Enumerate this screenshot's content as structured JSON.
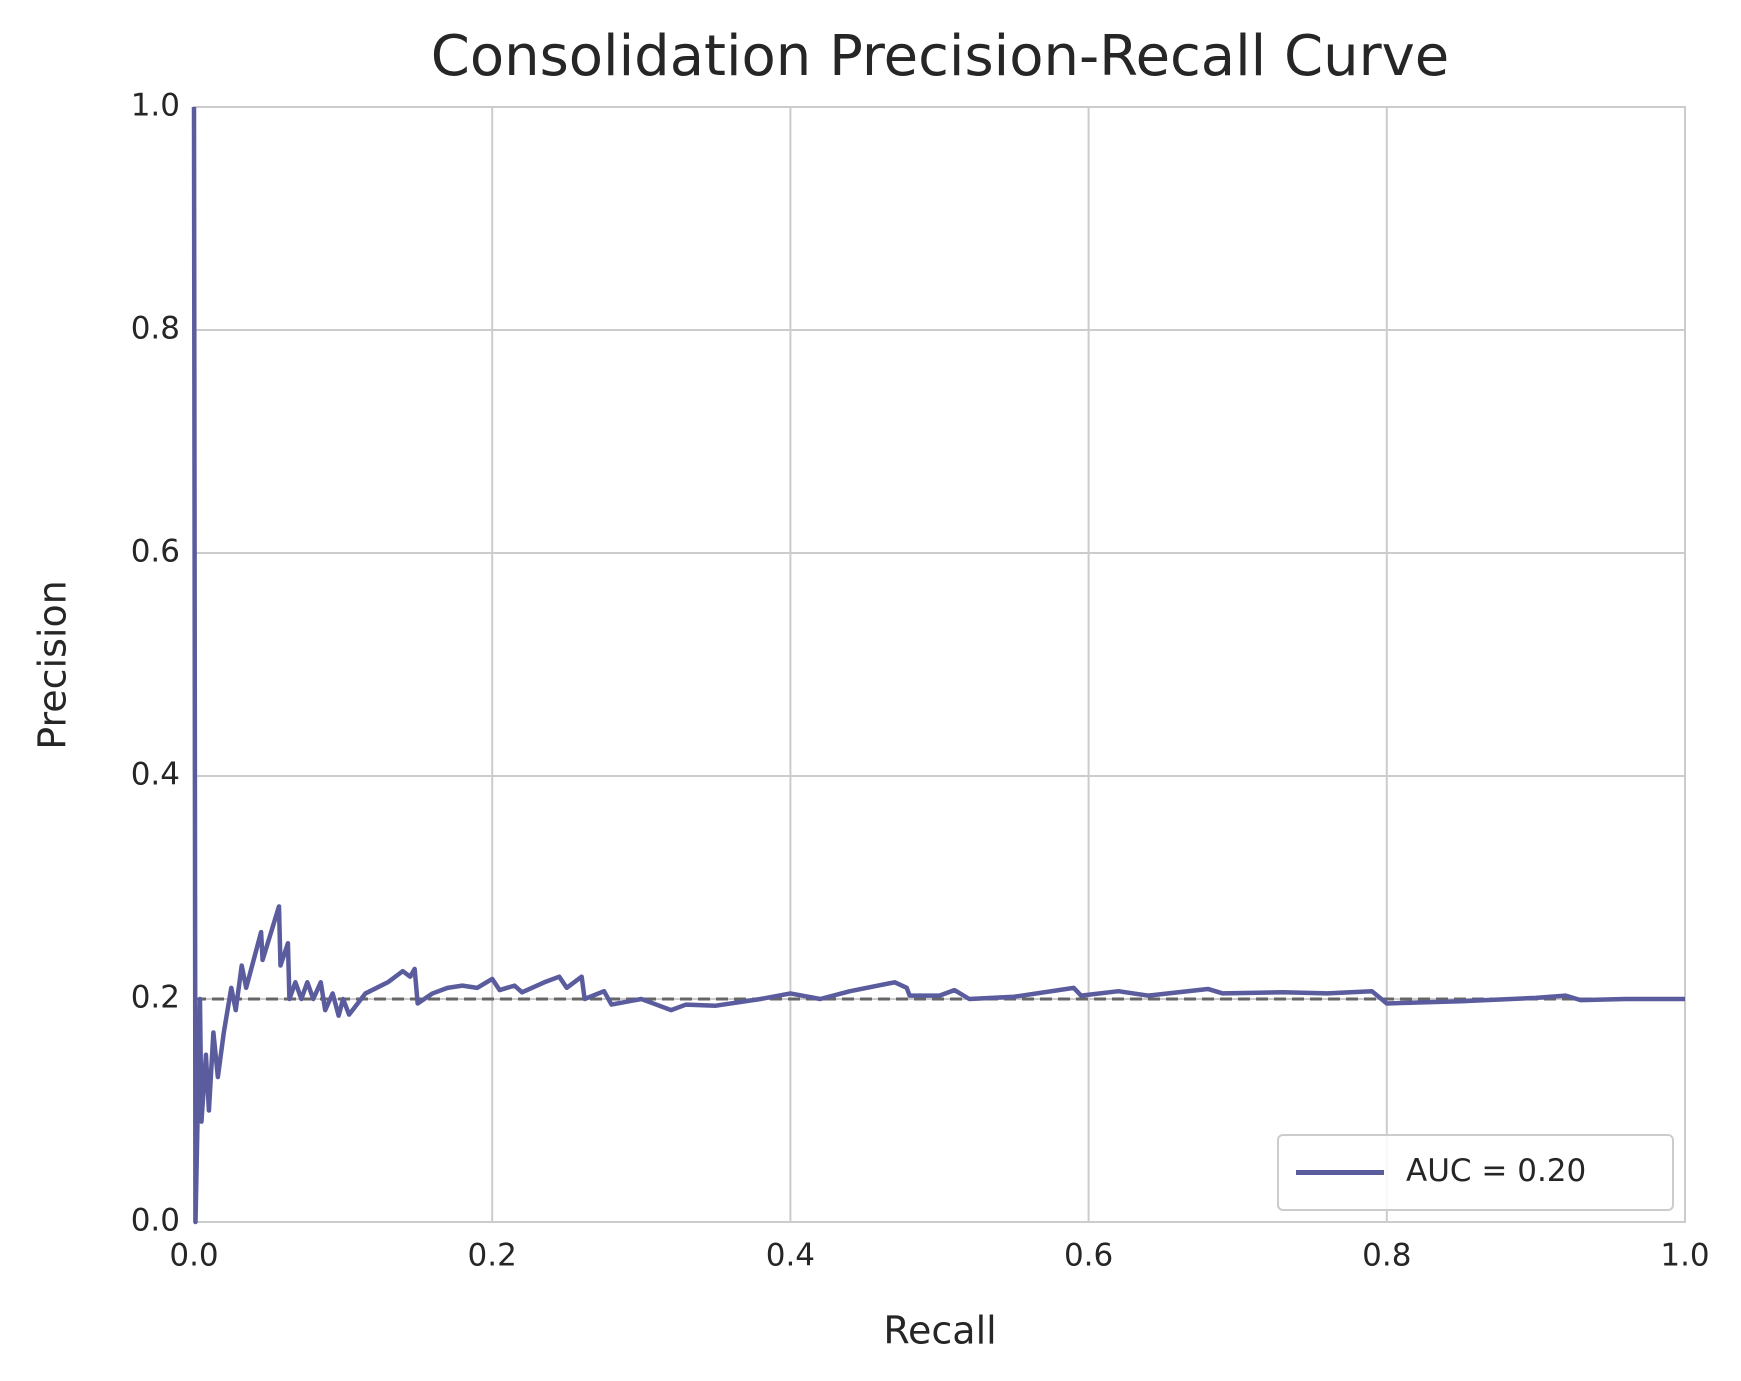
{
  "chart_data": {
    "type": "line",
    "title": "Consolidation Precision-Recall Curve",
    "xlabel": "Recall",
    "ylabel": "Precision",
    "x": [
      0,
      0.001,
      0.004,
      0.005,
      0.008,
      0.01,
      0.013,
      0.016,
      0.02,
      0.025,
      0.028,
      0.032,
      0.035,
      0.045,
      0.046,
      0.057,
      0.058,
      0.063,
      0.064,
      0.068,
      0.072,
      0.076,
      0.08,
      0.085,
      0.088,
      0.093,
      0.097,
      0.1,
      0.104,
      0.115,
      0.13,
      0.14,
      0.145,
      0.148,
      0.15,
      0.16,
      0.17,
      0.18,
      0.19,
      0.2,
      0.205,
      0.215,
      0.22,
      0.235,
      0.245,
      0.25,
      0.26,
      0.262,
      0.275,
      0.28,
      0.3,
      0.31,
      0.32,
      0.33,
      0.35,
      0.38,
      0.4,
      0.42,
      0.44,
      0.47,
      0.478,
      0.48,
      0.5,
      0.51,
      0.52,
      0.55,
      0.59,
      0.595,
      0.62,
      0.64,
      0.68,
      0.69,
      0.73,
      0.76,
      0.79,
      0.8,
      0.85,
      0.9,
      0.92,
      0.93,
      0.96,
      0.98,
      1.0
    ],
    "series": [
      {
        "name": "AUC = 0.20",
        "color": "#5a5c9e",
        "values": [
          1,
          0,
          0.2,
          0.09,
          0.15,
          0.1,
          0.17,
          0.13,
          0.17,
          0.21,
          0.19,
          0.23,
          0.21,
          0.26,
          0.235,
          0.283,
          0.23,
          0.25,
          0.2,
          0.215,
          0.2,
          0.215,
          0.2,
          0.215,
          0.19,
          0.205,
          0.185,
          0.2,
          0.186,
          0.205,
          0.215,
          0.225,
          0.22,
          0.227,
          0.196,
          0.205,
          0.21,
          0.212,
          0.21,
          0.218,
          0.208,
          0.212,
          0.206,
          0.215,
          0.22,
          0.21,
          0.22,
          0.2,
          0.207,
          0.195,
          0.2,
          0.195,
          0.19,
          0.195,
          0.194,
          0.2,
          0.205,
          0.2,
          0.207,
          0.215,
          0.21,
          0.203,
          0.203,
          0.208,
          0.2,
          0.202,
          0.21,
          0.203,
          0.207,
          0.203,
          0.209,
          0.205,
          0.206,
          0.205,
          0.207,
          0.196,
          0.198,
          0.201,
          0.203,
          0.199,
          0.2,
          0.2,
          0.2
        ]
      }
    ],
    "reference_line": {
      "y": 0.2,
      "color": "#666666",
      "style": "dashed"
    },
    "xlim": [
      0,
      1
    ],
    "ylim": [
      0,
      1
    ],
    "xticks": [
      {
        "value": 0,
        "label": "0.0"
      },
      0.2,
      0.4,
      0.6,
      0.8,
      {
        "value": 1,
        "label": "1.0"
      }
    ],
    "yticks": [
      {
        "value": 0,
        "label": "0.0"
      },
      0.2,
      0.4,
      0.6,
      0.8,
      {
        "value": 1,
        "label": "1.0"
      }
    ],
    "grid": true,
    "legend": "lower right"
  }
}
